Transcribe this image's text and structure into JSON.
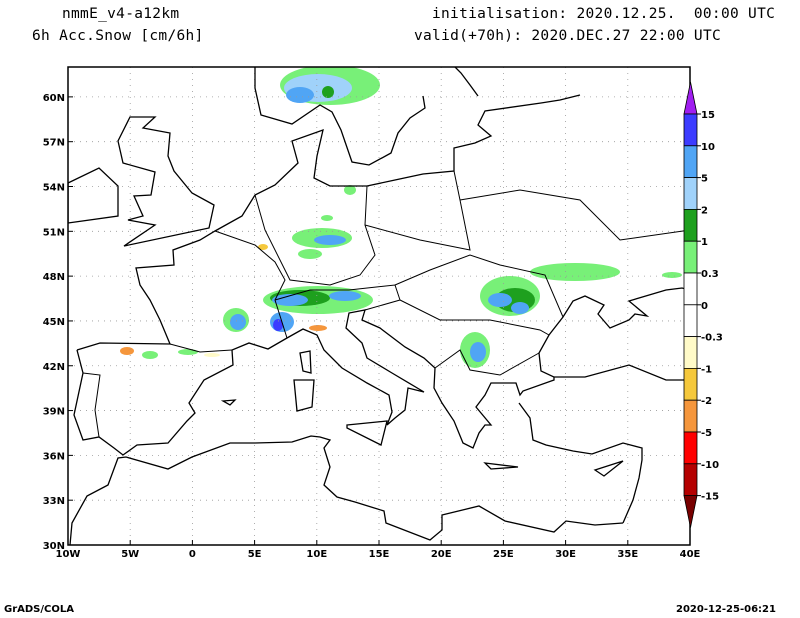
{
  "header": {
    "model": "nmmE_v4-a12km",
    "field": "6h Acc.Snow [cm/6h]",
    "init": "initialisation: 2020.12.25.  00:00 UTC",
    "valid": "valid(+70h): 2020.DEC.27 22:00 UTC"
  },
  "map": {
    "lon_range": [
      -10,
      40
    ],
    "lat_range": [
      30,
      62
    ],
    "lon_ticks": [
      {
        "value": -10,
        "label": "10W"
      },
      {
        "value": -5,
        "label": "5W"
      },
      {
        "value": 0,
        "label": "0"
      },
      {
        "value": 5,
        "label": "5E"
      },
      {
        "value": 10,
        "label": "10E"
      },
      {
        "value": 15,
        "label": "15E"
      },
      {
        "value": 20,
        "label": "20E"
      },
      {
        "value": 25,
        "label": "25E"
      },
      {
        "value": 30,
        "label": "30E"
      },
      {
        "value": 35,
        "label": "35E"
      },
      {
        "value": 40,
        "label": "40E"
      }
    ],
    "lat_ticks": [
      {
        "value": 30,
        "label": "30N"
      },
      {
        "value": 33,
        "label": "33N"
      },
      {
        "value": 36,
        "label": "36N"
      },
      {
        "value": 39,
        "label": "39N"
      },
      {
        "value": 42,
        "label": "42N"
      },
      {
        "value": 45,
        "label": "45N"
      },
      {
        "value": 48,
        "label": "48N"
      },
      {
        "value": 51,
        "label": "51N"
      },
      {
        "value": 54,
        "label": "54N"
      },
      {
        "value": 57,
        "label": "57N"
      },
      {
        "value": 60,
        "label": "60N"
      }
    ]
  },
  "colorbar": {
    "top_arrow_color": "#a01ef0",
    "bottom_arrow_color": "#780000",
    "boundaries": [
      "15",
      "10",
      "5",
      "2",
      "1",
      "0.3",
      "0",
      "-0.3",
      "-1",
      "-2",
      "-5",
      "-10",
      "-15"
    ],
    "colors": [
      "#3c3cff",
      "#50a5f5",
      "#a0d2fa",
      "#1ea01e",
      "#78f078",
      "#ffffff",
      "#ffffff",
      "#fffac8",
      "#f5c83c",
      "#f5963c",
      "#ff0000",
      "#b40000"
    ]
  },
  "footer": {
    "left": "GrADS/COLA",
    "right": "2020-12-25-06:21"
  }
}
